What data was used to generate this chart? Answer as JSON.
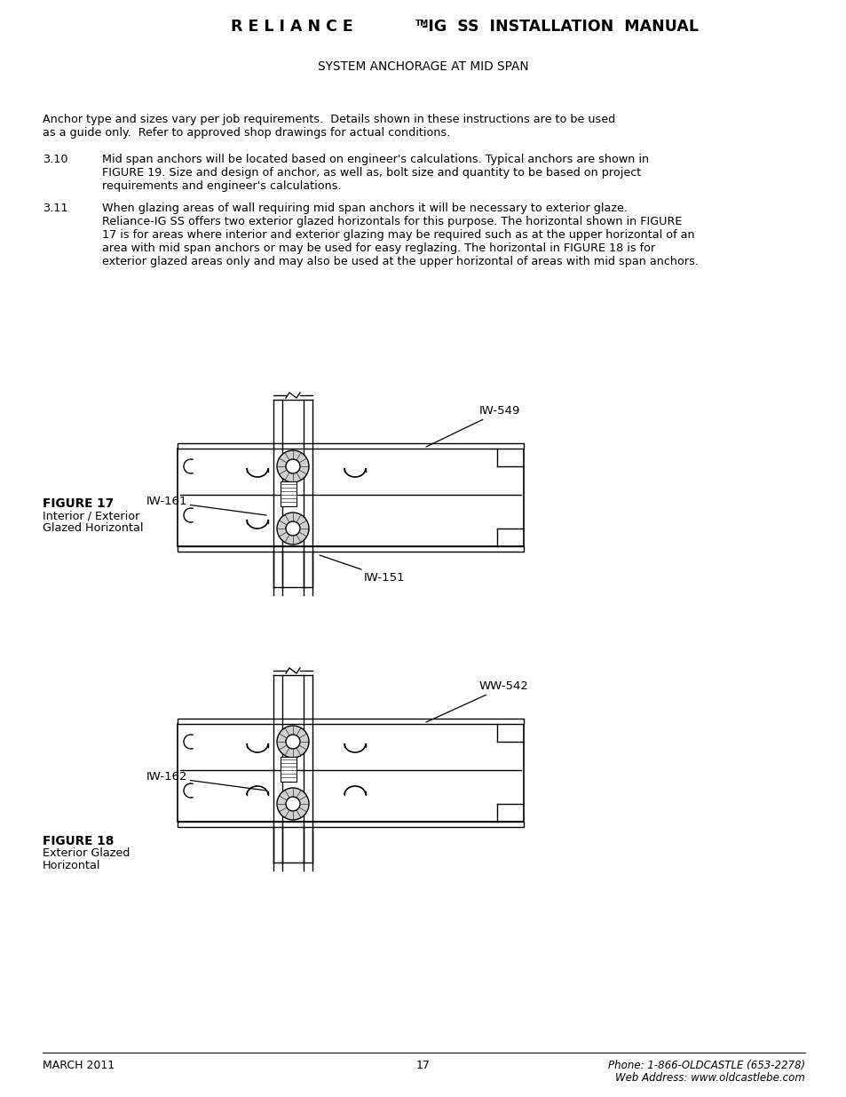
{
  "bg_color": "#ffffff",
  "header_part1": "R E L I A N C E",
  "header_tm": "TM",
  "header_part2": "-IG  SS  INSTALLATION  MANUAL",
  "subtitle": "SYSTEM ANCHORAGE AT MID SPAN",
  "para_intro_1": "Anchor type and sizes vary per job requirements.  Details shown in these instructions are to be used",
  "para_intro_2": "as a guide only.  Refer to approved shop drawings for actual conditions.",
  "para_310_num": "3.10",
  "para_310_1": "Mid span anchors will be located based on engineer's calculations. Typical anchors are shown in",
  "para_310_2": "FIGURE 19. Size and design of anchor, as well as, bolt size and quantity to be based on project",
  "para_310_3": "requirements and engineer's calculations.",
  "para_311_num": "3.11",
  "para_311_1": "When glazing areas of wall requiring mid span anchors it will be necessary to exterior glaze.",
  "para_311_2": "Reliance-IG SS offers two exterior glazed horizontals for this purpose. The horizontal shown in FIGURE",
  "para_311_3": "17 is for areas where interior and exterior glazing may be required such as at the upper horizontal of an",
  "para_311_4": "area with mid span anchors or may be used for easy reglazing. The horizontal in FIGURE 18 is for",
  "para_311_5": "exterior glazed areas only and may also be used at the upper horizontal of areas with mid span anchors.",
  "fig17_bold": "FIGURE 17",
  "fig17_sub1": "Interior / Exterior",
  "fig17_sub2": "Glazed Horizontal",
  "fig18_bold": "FIGURE 18",
  "fig18_sub1": "Exterior Glazed",
  "fig18_sub2": "Horizontal",
  "lbl_iw549": "IW-549",
  "lbl_iw161": "IW-161",
  "lbl_iw151": "IW-151",
  "lbl_ww542": "WW-542",
  "lbl_iw162": "IW-162",
  "footer_left": "MARCH 2011",
  "footer_center": "17",
  "footer_right1": "Phone: 1-866-OLDCASTLE (653-2278)",
  "footer_right2": "Web Address: www.oldcastlebe.com"
}
